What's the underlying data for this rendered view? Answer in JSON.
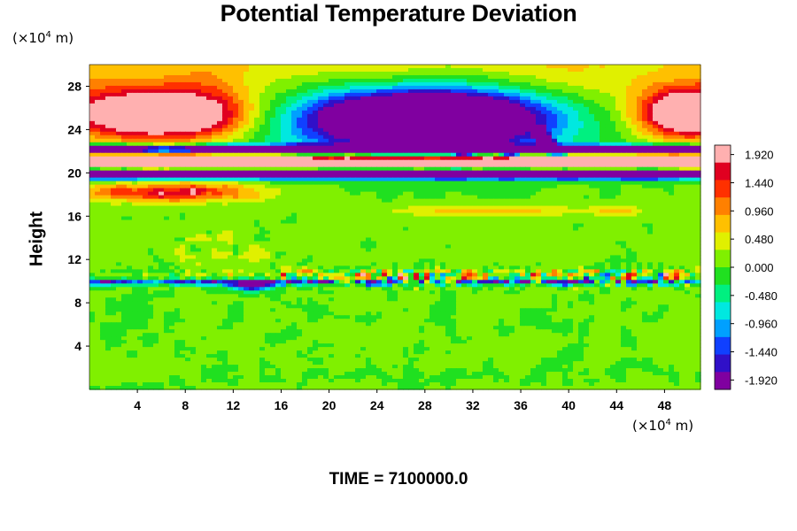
{
  "chart_data": {
    "type": "heatmap",
    "title": "Potential Temperature Deviation",
    "ylabel": "Height",
    "xlabel": "",
    "y_unit": {
      "prefix": "(×10",
      "exp": "4",
      "suffix": " m)"
    },
    "x_unit": {
      "prefix": "(×10",
      "exp": "4",
      "suffix": " m)"
    },
    "xlim": [
      0,
      51
    ],
    "ylim": [
      0,
      30
    ],
    "x_ticks": [
      4,
      8,
      12,
      16,
      20,
      24,
      28,
      32,
      36,
      40,
      44,
      48
    ],
    "y_ticks": [
      4,
      8,
      12,
      16,
      20,
      24,
      28
    ],
    "colorbar": {
      "range": [
        -2.08,
        2.08
      ],
      "tick_labels": [
        "1.920",
        "1.440",
        "0.960",
        "0.480",
        "0.000",
        "-0.480",
        "-0.960",
        "-1.440",
        "-1.920"
      ],
      "tick_values": [
        1.92,
        1.44,
        0.96,
        0.48,
        0.0,
        -0.48,
        -0.96,
        -1.44,
        -1.92
      ],
      "colors": [
        "#8000a0",
        "#3010c8",
        "#1040ff",
        "#00a0ff",
        "#00e8e0",
        "#00f080",
        "#20e020",
        "#80f000",
        "#e0f000",
        "#ffc000",
        "#ff8000",
        "#ff3000",
        "#e00020",
        "#ffb0b0"
      ]
    },
    "features": [
      {
        "name": "purple arch upper center",
        "x": 27,
        "y": 24.8,
        "value": -2.0
      },
      {
        "name": "warm region upper left",
        "x": 6,
        "y": 25.5,
        "value": 2.0
      },
      {
        "name": "warm region upper right",
        "x": 49.5,
        "y": 25.5,
        "value": 2.0
      },
      {
        "name": "warm layer mid",
        "x": 25,
        "y": 20.8,
        "value": 1.95
      },
      {
        "name": "cold layer",
        "x": 25,
        "y": 20.0,
        "value": -1.95
      },
      {
        "name": "warm band left",
        "x": 7,
        "y": 18.2,
        "value": 1.5
      },
      {
        "name": "noisy band",
        "x": 30,
        "y": 10.2,
        "value": 1.2
      },
      {
        "name": "cold patch",
        "x": 13.5,
        "y": 9.6,
        "value": -1.5
      }
    ],
    "time_label": "TIME = 7100000.0"
  }
}
